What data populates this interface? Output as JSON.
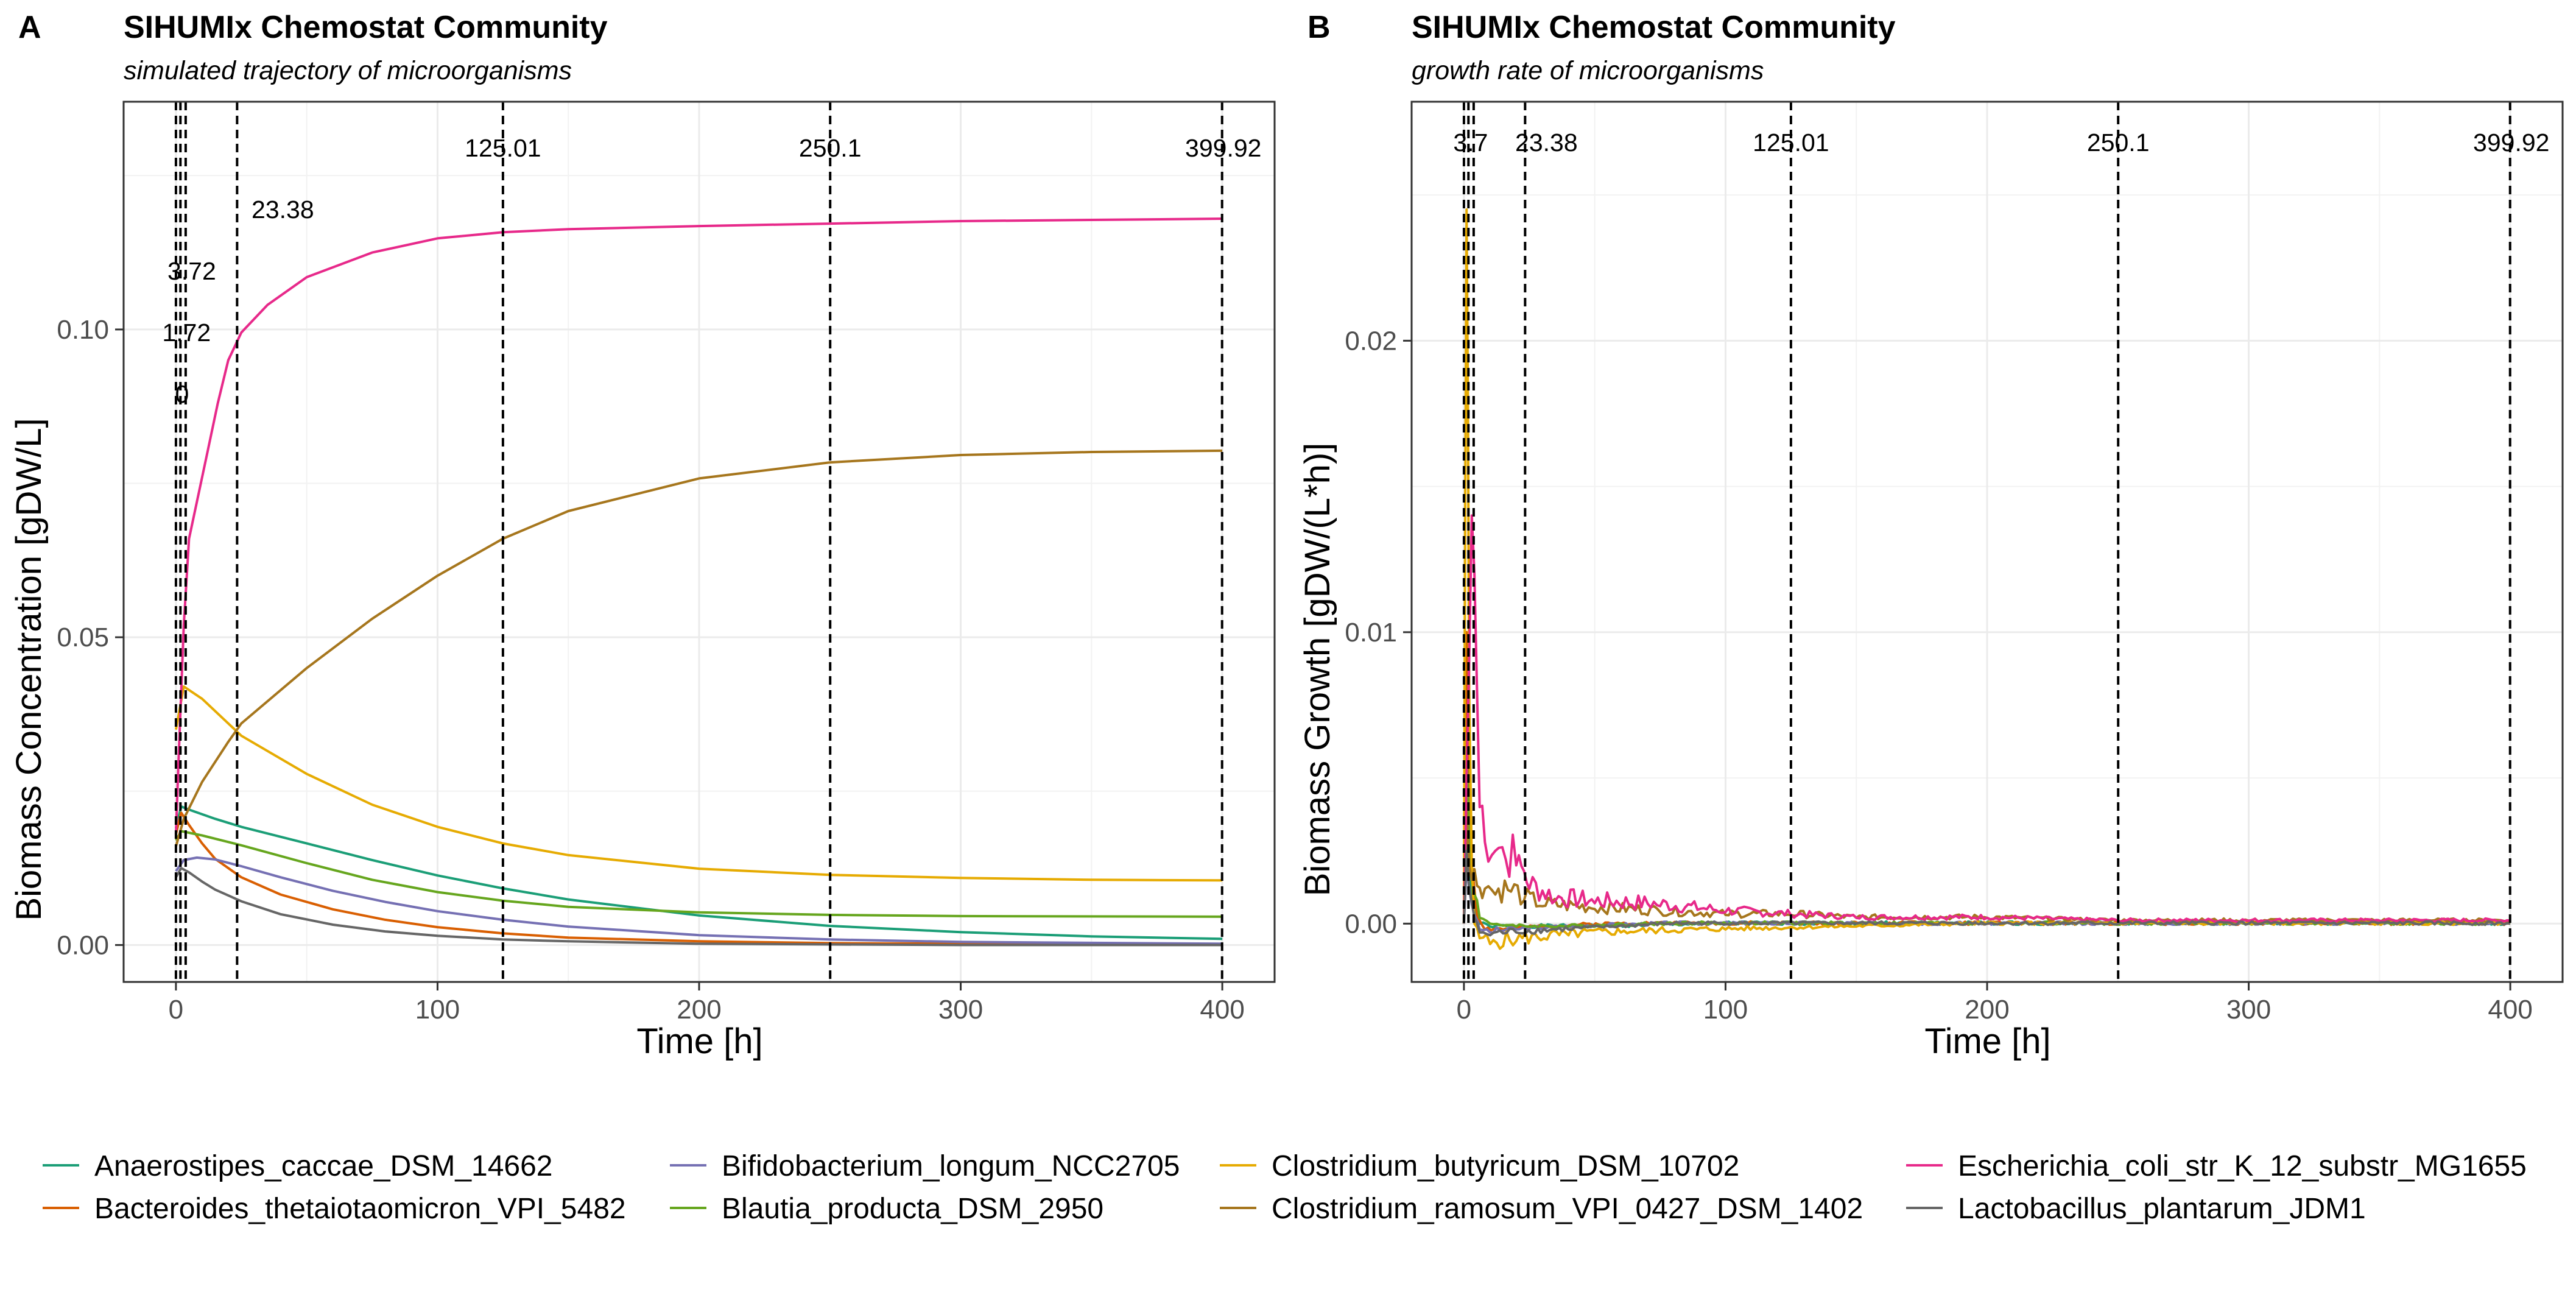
{
  "panels": [
    {
      "letter": "A",
      "title": "SIHUMIx Chemostat Community",
      "subtitle": "simulated trajectory of microorganisms",
      "ylabel": "Biomass Concentration [gDW/L]",
      "xlabel": "Time [h]"
    },
    {
      "letter": "B",
      "title": "SIHUMIx Chemostat Community",
      "subtitle": "growth rate of microorganisms",
      "ylabel": "Biomass Growth [gDW/(L*h)]",
      "xlabel": "Time [h]"
    }
  ],
  "legend": {
    "items": [
      {
        "label": "Anaerostipes_caccae_DSM_14662",
        "color": "#1b9e77"
      },
      {
        "label": "Bacteroides_thetaiotaomicron_VPI_5482",
        "color": "#d95f02"
      },
      {
        "label": "Bifidobacterium_longum_NCC2705",
        "color": "#7570b3"
      },
      {
        "label": "Blautia_producta_DSM_2950",
        "color": "#66a61e"
      },
      {
        "label": "Clostridium_butyricum_DSM_10702",
        "color": "#e6ab02"
      },
      {
        "label": "Clostridium_ramosum_VPI_0427_DSM_1402",
        "color": "#a6761d"
      },
      {
        "label": "Escherichia_coli_str_K_12_substr_MG1655",
        "color": "#e7298a"
      },
      {
        "label": "Lactobacillus_plantarum_JDM1",
        "color": "#666666"
      }
    ]
  },
  "chart_data": [
    {
      "type": "line",
      "title": "SIHUMIx Chemostat Community",
      "subtitle": "simulated trajectory of microorganisms",
      "xlabel": "Time [h]",
      "ylabel": "Biomass Concentration [gDW/L]",
      "xlim": [
        -20,
        420
      ],
      "ylim": [
        -0.006,
        0.137
      ],
      "xticks": [
        0,
        100,
        200,
        300,
        400
      ],
      "xtick_labels": [
        "0",
        "100",
        "200",
        "300",
        "400"
      ],
      "yticks": [
        0,
        0.05,
        0.1
      ],
      "ytick_labels": [
        "0.00",
        "0.05",
        "0.10"
      ],
      "grid": true,
      "vlines": [
        {
          "x": 0,
          "label": "0",
          "label_y": 0.0895
        },
        {
          "x": 1.72,
          "label": "1.72",
          "label_y": 0.0995
        },
        {
          "x": 3.72,
          "label": "3.72",
          "label_y": 0.1095
        },
        {
          "x": 23.38,
          "label": "23.38",
          "label_y": 0.1195
        },
        {
          "x": 125.01,
          "label": "125.01",
          "label_y": 0.1295
        },
        {
          "x": 250.1,
          "label": "250.1",
          "label_y": 0.1295
        },
        {
          "x": 399.92,
          "label": "399.92",
          "label_y": 0.1295
        }
      ],
      "series": [
        {
          "name": "Anaerostipes_caccae_DSM_14662",
          "x": [
            0,
            2,
            5,
            15,
            25,
            50,
            75,
            100,
            125,
            150,
            200,
            250,
            300,
            350,
            400
          ],
          "y": [
            0.019,
            0.0225,
            0.022,
            0.0205,
            0.0192,
            0.0165,
            0.0138,
            0.0113,
            0.0092,
            0.0074,
            0.0048,
            0.0031,
            0.0021,
            0.0014,
            0.001
          ]
        },
        {
          "name": "Bacteroides_thetaiotaomicron_VPI_5482",
          "x": [
            0,
            2,
            5,
            10,
            15,
            25,
            40,
            60,
            80,
            100,
            125,
            150,
            200,
            250,
            300,
            400
          ],
          "y": [
            0.018,
            0.0215,
            0.0195,
            0.0165,
            0.014,
            0.011,
            0.0082,
            0.0058,
            0.0041,
            0.0029,
            0.0019,
            0.0012,
            0.0006,
            0.0003,
            0.0002,
            0.0001
          ]
        },
        {
          "name": "Bifidobacterium_longum_NCC2705",
          "x": [
            0,
            3,
            8,
            15,
            25,
            40,
            60,
            80,
            100,
            125,
            150,
            200,
            250,
            300,
            400
          ],
          "y": [
            0.012,
            0.0138,
            0.0142,
            0.0139,
            0.0128,
            0.011,
            0.0088,
            0.007,
            0.0055,
            0.0041,
            0.003,
            0.0016,
            0.0009,
            0.0005,
            0.0002
          ]
        },
        {
          "name": "Blautia_producta_DSM_2950",
          "x": [
            0,
            2,
            10,
            25,
            50,
            75,
            100,
            125,
            150,
            200,
            250,
            300,
            400
          ],
          "y": [
            0.017,
            0.0185,
            0.0178,
            0.0162,
            0.0133,
            0.0106,
            0.0086,
            0.0072,
            0.0062,
            0.0053,
            0.0049,
            0.0047,
            0.0046
          ]
        },
        {
          "name": "Clostridium_butyricum_DSM_10702",
          "x": [
            0,
            3,
            10,
            25,
            50,
            75,
            100,
            125,
            150,
            200,
            250,
            300,
            350,
            400
          ],
          "y": [
            0.035,
            0.042,
            0.04,
            0.034,
            0.0278,
            0.0228,
            0.0192,
            0.0165,
            0.0146,
            0.0124,
            0.0114,
            0.0109,
            0.0106,
            0.0105
          ]
        },
        {
          "name": "Clostridium_ramosum_VPI_0427_DSM_1402",
          "x": [
            0,
            3,
            10,
            20,
            25,
            50,
            75,
            100,
            125,
            150,
            200,
            250,
            300,
            350,
            400
          ],
          "y": [
            0.016,
            0.0205,
            0.0265,
            0.033,
            0.036,
            0.045,
            0.053,
            0.06,
            0.066,
            0.0705,
            0.0758,
            0.0784,
            0.0796,
            0.0801,
            0.0803
          ]
        },
        {
          "name": "Escherichia_coli_str_K_12_substr_MG1655",
          "x": [
            0,
            1,
            2,
            3,
            5,
            8,
            12,
            16,
            20,
            25,
            35,
            50,
            75,
            100,
            125,
            150,
            200,
            250,
            300,
            350,
            400
          ],
          "y": [
            0.018,
            0.03,
            0.041,
            0.052,
            0.066,
            0.072,
            0.08,
            0.088,
            0.095,
            0.0995,
            0.104,
            0.1085,
            0.1125,
            0.1148,
            0.1158,
            0.1163,
            0.1168,
            0.1172,
            0.1176,
            0.1178,
            0.118
          ]
        },
        {
          "name": "Lactobacillus_plantarum_JDM1",
          "x": [
            0,
            2,
            5,
            10,
            15,
            25,
            40,
            60,
            80,
            100,
            125,
            150,
            200,
            250,
            300,
            400
          ],
          "y": [
            0.011,
            0.0125,
            0.0118,
            0.0103,
            0.009,
            0.0071,
            0.005,
            0.0033,
            0.0022,
            0.0015,
            0.0009,
            0.0006,
            0.0002,
            0.0001,
            0.0,
            0.0
          ]
        }
      ]
    },
    {
      "type": "line",
      "title": "SIHUMIx Chemostat Community",
      "subtitle": "growth rate of microorganisms",
      "xlabel": "Time [h]",
      "ylabel": "Biomass Growth [gDW/(L*h)]",
      "xlim": [
        -20,
        420
      ],
      "ylim": [
        -0.002,
        0.0282
      ],
      "xticks": [
        0,
        100,
        200,
        300,
        400
      ],
      "xtick_labels": [
        "0",
        "100",
        "200",
        "300",
        "400"
      ],
      "yticks": [
        0,
        0.01,
        0.02
      ],
      "ytick_labels": [
        "0.00",
        "0.01",
        "0.02"
      ],
      "grid": true,
      "vlines": [
        {
          "x": 0,
          "label": "",
          "label_y": 0.0268
        },
        {
          "x": 1.72,
          "label": "",
          "label_y": 0.0268
        },
        {
          "x": 3.72,
          "label": "3.7",
          "label_y": 0.0268
        },
        {
          "x": 23.38,
          "label": "23.38",
          "label_y": 0.0268
        },
        {
          "x": 125.01,
          "label": "125.01",
          "label_y": 0.0268
        },
        {
          "x": 250.1,
          "label": "250.1",
          "label_y": 0.0268
        },
        {
          "x": 399.92,
          "label": "399.92",
          "label_y": 0.0268
        }
      ],
      "series": [
        {
          "name": "Anaerostipes_caccae_DSM_14662",
          "x": [
            0,
            1,
            2,
            4,
            6,
            10,
            20,
            50,
            100,
            200,
            300,
            400
          ],
          "y": [
            0.0,
            0.003,
            0.0015,
            0.0005,
            0.0,
            -0.0001,
            -0.0001,
            -0.0001,
            0.0,
            0.0,
            0.0,
            0.0
          ]
        },
        {
          "name": "Bacteroides_thetaiotaomicron_VPI_5482",
          "x": [
            0,
            1,
            2,
            3,
            5,
            8,
            15,
            30,
            60,
            100,
            200,
            400
          ],
          "y": [
            0.0,
            0.01,
            0.005,
            0.002,
            0.0003,
            -0.0002,
            -0.0002,
            -0.0001,
            0.0,
            0.0,
            0.0,
            0.0
          ]
        },
        {
          "name": "Bifidobacterium_longum_NCC2705",
          "x": [
            0,
            1,
            2,
            4,
            6,
            10,
            20,
            40,
            80,
            150,
            300,
            400
          ],
          "y": [
            0.0,
            0.002,
            0.0012,
            0.0003,
            -0.0002,
            -0.0003,
            -0.0002,
            -0.0001,
            0.0,
            0.0,
            0.0,
            0.0
          ]
        },
        {
          "name": "Blautia_producta_DSM_2950",
          "x": [
            0,
            1,
            2,
            4,
            6,
            10,
            20,
            40,
            80,
            150,
            300,
            400
          ],
          "y": [
            0.0,
            0.006,
            0.003,
            0.001,
            0.0002,
            0.0,
            -0.0001,
            -0.0001,
            0.0,
            0.0,
            0.0,
            0.0
          ]
        },
        {
          "name": "Clostridium_butyricum_DSM_10702",
          "x": [
            0,
            0.5,
            1,
            1.5,
            2,
            3,
            4,
            6,
            10,
            20,
            40,
            60,
            100,
            150,
            200,
            300,
            400
          ],
          "y": [
            0.0,
            0.015,
            0.0245,
            0.018,
            0.008,
            0.002,
            0.0,
            -0.0005,
            -0.0007,
            -0.0006,
            -0.0004,
            -0.0003,
            -0.0002,
            -0.0001,
            0.0,
            0.0,
            0.0
          ]
        },
        {
          "name": "Clostridium_ramosum_VPI_0427_DSM_1402",
          "x": [
            0,
            1,
            2,
            3,
            5,
            8,
            12,
            18,
            23,
            30,
            50,
            75,
            100,
            125,
            150,
            200,
            250,
            300,
            400
          ],
          "y": [
            0.0,
            0.004,
            0.002,
            0.0015,
            0.0013,
            0.0012,
            0.001,
            0.0011,
            0.0008,
            0.0006,
            0.0005,
            0.0004,
            0.0003,
            0.0003,
            0.0002,
            0.0002,
            0.0001,
            0.0001,
            0.0001
          ]
        },
        {
          "name": "Escherichia_coli_str_K_12_substr_MG1655",
          "x": [
            0,
            1,
            2,
            3,
            4,
            5,
            6,
            8,
            12,
            16,
            20,
            23,
            25,
            35,
            50,
            75,
            100,
            125,
            150,
            200,
            250,
            300,
            350,
            400
          ],
          "y": [
            0.0,
            0.005,
            0.009,
            0.014,
            0.012,
            0.008,
            0.004,
            0.0028,
            0.0025,
            0.0022,
            0.002,
            0.0018,
            0.0012,
            0.0008,
            0.0007,
            0.0006,
            0.0004,
            0.0003,
            0.0002,
            0.0002,
            0.0001,
            0.0001,
            0.0001,
            0.0001
          ]
        },
        {
          "name": "Lactobacillus_plantarum_JDM1",
          "x": [
            0,
            1,
            2,
            4,
            6,
            10,
            20,
            40,
            80,
            150,
            300,
            400
          ],
          "y": [
            0.0,
            0.0025,
            0.0012,
            0.0002,
            -0.0003,
            -0.0004,
            -0.0003,
            -0.0002,
            0.0,
            0.0,
            0.0,
            0.0
          ]
        }
      ]
    }
  ]
}
